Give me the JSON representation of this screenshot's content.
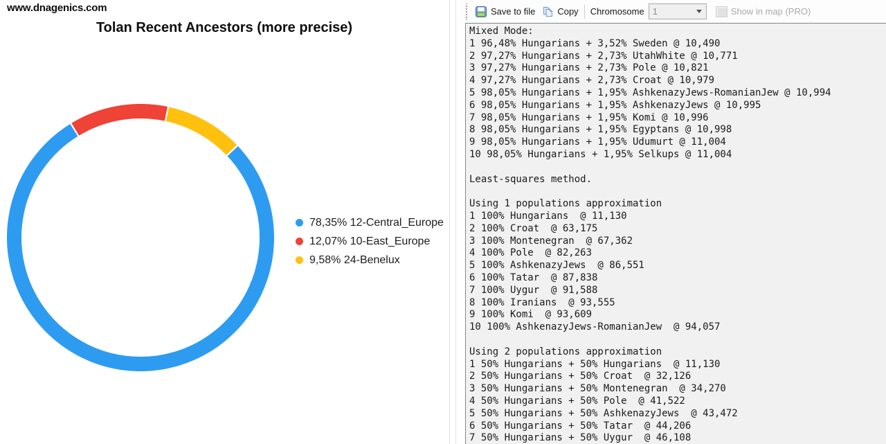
{
  "header": {
    "site": "www.dnagenics.com"
  },
  "toolbar": {
    "save_label": "Save to file",
    "copy_label": "Copy",
    "chromosome_label": "Chromosome",
    "chromosome_value": "1",
    "show_in_map_label": "Show in map (PRO)"
  },
  "chart_data": {
    "type": "pie",
    "style": "donut",
    "title": "Tolan Recent Ancestors (more precise)",
    "rotation_deg": 46.5,
    "legend_position": "right",
    "slices": [
      {
        "label": "12-Central_Europe",
        "value_pct": 78.35,
        "legend_text": "78,35% 12-Central_Europe",
        "color": "#2D9CF0"
      },
      {
        "label": "10-East_Europe",
        "value_pct": 12.07,
        "legend_text": "12,07% 10-East_Europe",
        "color": "#EF4337"
      },
      {
        "label": "24-Benelux",
        "value_pct": 9.58,
        "legend_text": "9,58% 24-Benelux",
        "color": "#FFC10E"
      }
    ]
  },
  "results": {
    "lines": [
      "Mixed Mode:",
      "1 96,48% Hungarians + 3,52% Sweden @ 10,490",
      "2 97,27% Hungarians + 2,73% UtahWhite @ 10,771",
      "3 97,27% Hungarians + 2,73% Pole @ 10,821",
      "4 97,27% Hungarians + 2,73% Croat @ 10,979",
      "5 98,05% Hungarians + 1,95% AshkenazyJews-RomanianJew @ 10,994",
      "6 98,05% Hungarians + 1,95% AshkenazyJews @ 10,995",
      "7 98,05% Hungarians + 1,95% Komi @ 10,996",
      "8 98,05% Hungarians + 1,95% Egyptans @ 10,998",
      "9 98,05% Hungarians + 1,95% Udumurt @ 11,004",
      "10 98,05% Hungarians + 1,95% Selkups @ 11,004",
      "",
      "Least-squares method.",
      "",
      "Using 1 populations approximation",
      "1 100% Hungarians  @ 11,130",
      "2 100% Croat  @ 63,175",
      "3 100% Montenegran  @ 67,362",
      "4 100% Pole  @ 82,263",
      "5 100% AshkenazyJews  @ 86,551",
      "6 100% Tatar  @ 87,838",
      "7 100% Uygur  @ 91,588",
      "8 100% Iranians  @ 93,555",
      "9 100% Komi  @ 93,609",
      "10 100% AshkenazyJews-RomanianJew  @ 94,057",
      "",
      "Using 2 populations approximation",
      "1 50% Hungarians + 50% Hungarians  @ 11,130",
      "2 50% Hungarians + 50% Croat  @ 32,126",
      "3 50% Hungarians + 50% Montenegran  @ 34,270",
      "4 50% Hungarians + 50% Pole  @ 41,522",
      "5 50% Hungarians + 50% AshkenazyJews  @ 43,472",
      "6 50% Hungarians + 50% Tatar  @ 44,206",
      "7 50% Hungarians + 50% Uygur  @ 46,108"
    ]
  }
}
